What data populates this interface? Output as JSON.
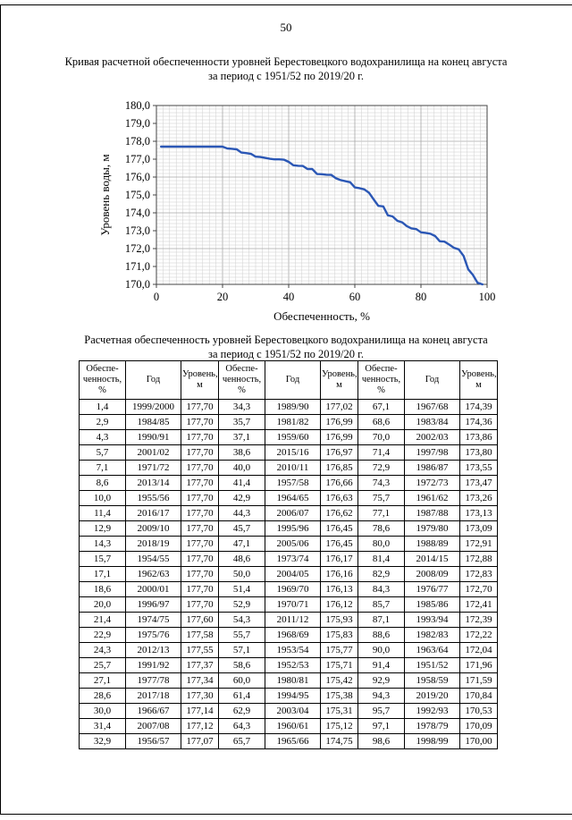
{
  "page": {
    "number": "50"
  },
  "chart_section": {
    "title_line1": "Кривая расчетной обеспеченности уровней Берестовецкого водохранилища на конец августа",
    "title_line2": "за период с 1951/52 по 2019/20 г."
  },
  "table_section": {
    "title_line1": "Расчетная обеспеченность уровней Берестовецкого водохранилища на конец августа",
    "title_line2": "за период с 1951/52 по 2019/20 г.",
    "column_headers": [
      "Обеспе-\nченность,\n%",
      "Год",
      "Уровень,\nм"
    ],
    "rows": [
      [
        "1,4",
        "1999/2000",
        "177,70",
        "34,3",
        "1989/90",
        "177,02",
        "67,1",
        "1967/68",
        "174,39"
      ],
      [
        "2,9",
        "1984/85",
        "177,70",
        "35,7",
        "1981/82",
        "176,99",
        "68,6",
        "1983/84",
        "174,36"
      ],
      [
        "4,3",
        "1990/91",
        "177,70",
        "37,1",
        "1959/60",
        "176,99",
        "70,0",
        "2002/03",
        "173,86"
      ],
      [
        "5,7",
        "2001/02",
        "177,70",
        "38,6",
        "2015/16",
        "176,97",
        "71,4",
        "1997/98",
        "173,80"
      ],
      [
        "7,1",
        "1971/72",
        "177,70",
        "40,0",
        "2010/11",
        "176,85",
        "72,9",
        "1986/87",
        "173,55"
      ],
      [
        "8,6",
        "2013/14",
        "177,70",
        "41,4",
        "1957/58",
        "176,66",
        "74,3",
        "1972/73",
        "173,47"
      ],
      [
        "10,0",
        "1955/56",
        "177,70",
        "42,9",
        "1964/65",
        "176,63",
        "75,7",
        "1961/62",
        "173,26"
      ],
      [
        "11,4",
        "2016/17",
        "177,70",
        "44,3",
        "2006/07",
        "176,62",
        "77,1",
        "1987/88",
        "173,13"
      ],
      [
        "12,9",
        "2009/10",
        "177,70",
        "45,7",
        "1995/96",
        "176,45",
        "78,6",
        "1979/80",
        "173,09"
      ],
      [
        "14,3",
        "2018/19",
        "177,70",
        "47,1",
        "2005/06",
        "176,45",
        "80,0",
        "1988/89",
        "172,91"
      ],
      [
        "15,7",
        "1954/55",
        "177,70",
        "48,6",
        "1973/74",
        "176,17",
        "81,4",
        "2014/15",
        "172,88"
      ],
      [
        "17,1",
        "1962/63",
        "177,70",
        "50,0",
        "2004/05",
        "176,16",
        "82,9",
        "2008/09",
        "172,83"
      ],
      [
        "18,6",
        "2000/01",
        "177,70",
        "51,4",
        "1969/70",
        "176,13",
        "84,3",
        "1976/77",
        "172,70"
      ],
      [
        "20,0",
        "1996/97",
        "177,70",
        "52,9",
        "1970/71",
        "176,12",
        "85,7",
        "1985/86",
        "172,41"
      ],
      [
        "21,4",
        "1974/75",
        "177,60",
        "54,3",
        "2011/12",
        "175,93",
        "87,1",
        "1993/94",
        "172,39"
      ],
      [
        "22,9",
        "1975/76",
        "177,58",
        "55,7",
        "1968/69",
        "175,83",
        "88,6",
        "1982/83",
        "172,22"
      ],
      [
        "24,3",
        "2012/13",
        "177,55",
        "57,1",
        "1953/54",
        "175,77",
        "90,0",
        "1963/64",
        "172,04"
      ],
      [
        "25,7",
        "1991/92",
        "177,37",
        "58,6",
        "1952/53",
        "175,71",
        "91,4",
        "1951/52",
        "171,96"
      ],
      [
        "27,1",
        "1977/78",
        "177,34",
        "60,0",
        "1980/81",
        "175,42",
        "92,9",
        "1958/59",
        "171,59"
      ],
      [
        "28,6",
        "2017/18",
        "177,30",
        "61,4",
        "1994/95",
        "175,38",
        "94,3",
        "2019/20",
        "170,84"
      ],
      [
        "30,0",
        "1966/67",
        "177,14",
        "62,9",
        "2003/04",
        "175,31",
        "95,7",
        "1992/93",
        "170,53"
      ],
      [
        "31,4",
        "2007/08",
        "177,12",
        "64,3",
        "1960/61",
        "175,12",
        "97,1",
        "1978/79",
        "170,09"
      ],
      [
        "32,9",
        "1956/57",
        "177,07",
        "65,7",
        "1965/66",
        "174,75",
        "98,6",
        "1998/99",
        "170,00"
      ]
    ]
  },
  "chart_data": {
    "type": "line",
    "title": "Кривая расчетной обеспеченности уровней Берестовецкого водохранилища на конец августа за период с 1951/52 по 2019/20 г.",
    "xlabel": "Обеспеченность, %",
    "ylabel": "Уровень воды, м",
    "xlim": [
      0,
      100
    ],
    "ylim": [
      170,
      180
    ],
    "grid": true,
    "legend": false,
    "line_color": "#2b57b5",
    "x_tick_values": [
      0,
      20,
      40,
      60,
      80,
      100
    ],
    "x_tick_labels": [
      "0",
      "20",
      "40",
      "60",
      "80",
      "100"
    ],
    "y_tick_labels": [
      "180,0",
      "179,0",
      "178,0",
      "177,0",
      "176,0",
      "175,0",
      "174,0",
      "173,0",
      "172,0",
      "171,0",
      "170,0"
    ],
    "x": [
      1.4,
      2.9,
      4.3,
      5.7,
      7.1,
      8.6,
      10.0,
      11.4,
      12.9,
      14.3,
      15.7,
      17.1,
      18.6,
      20.0,
      21.4,
      22.9,
      24.3,
      25.7,
      27.1,
      28.6,
      30.0,
      31.4,
      32.9,
      34.3,
      35.7,
      37.1,
      38.6,
      40.0,
      41.4,
      42.9,
      44.3,
      45.7,
      47.1,
      48.6,
      50.0,
      51.4,
      52.9,
      54.3,
      55.7,
      57.1,
      58.6,
      60.0,
      61.4,
      62.9,
      64.3,
      65.7,
      67.1,
      68.6,
      70.0,
      71.4,
      72.9,
      74.3,
      75.7,
      77.1,
      78.6,
      80.0,
      81.4,
      82.9,
      84.3,
      85.7,
      87.1,
      88.6,
      90.0,
      91.4,
      92.9,
      94.3,
      95.7,
      97.1,
      98.6
    ],
    "y": [
      177.7,
      177.7,
      177.7,
      177.7,
      177.7,
      177.7,
      177.7,
      177.7,
      177.7,
      177.7,
      177.7,
      177.7,
      177.7,
      177.7,
      177.6,
      177.58,
      177.55,
      177.37,
      177.34,
      177.3,
      177.14,
      177.12,
      177.07,
      177.02,
      176.99,
      176.99,
      176.97,
      176.85,
      176.66,
      176.63,
      176.62,
      176.45,
      176.45,
      176.17,
      176.16,
      176.13,
      176.12,
      175.93,
      175.83,
      175.77,
      175.71,
      175.42,
      175.38,
      175.31,
      175.12,
      174.75,
      174.39,
      174.36,
      173.86,
      173.8,
      173.55,
      173.47,
      173.26,
      173.13,
      173.09,
      172.91,
      172.88,
      172.83,
      172.7,
      172.41,
      172.39,
      172.22,
      172.04,
      171.96,
      171.59,
      170.84,
      170.53,
      170.09,
      170.0
    ]
  }
}
